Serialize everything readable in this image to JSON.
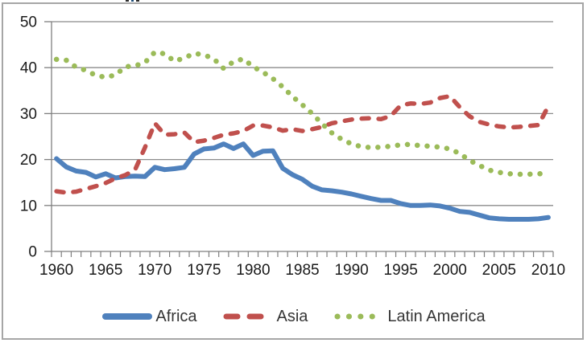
{
  "chart_data": {
    "type": "line",
    "title": "",
    "x_start": 1960,
    "x_end": 2010,
    "x_step": 1,
    "x_tick_labels": [
      "1960",
      "1965",
      "1970",
      "1975",
      "1980",
      "1985",
      "1990",
      "1995",
      "2000",
      "2005",
      "2010"
    ],
    "y_ticks": [
      0,
      10,
      20,
      30,
      40,
      50
    ],
    "ylim": [
      0,
      50
    ],
    "grid": "horizontal",
    "legend_position": "bottom",
    "series": [
      {
        "name": "Africa",
        "slug": "africa",
        "color": "#4f81bd",
        "style": "solid",
        "values": [
          20.2,
          18.4,
          17.5,
          17.2,
          16.2,
          16.9,
          16.0,
          16.3,
          16.4,
          16.3,
          18.3,
          17.8,
          18.0,
          18.3,
          21.2,
          22.3,
          22.5,
          23.4,
          22.4,
          23.4,
          20.9,
          21.8,
          21.9,
          18.1,
          16.7,
          15.7,
          14.2,
          13.4,
          13.2,
          12.9,
          12.5,
          12.0,
          11.5,
          11.1,
          11.1,
          10.4,
          10.0,
          10.0,
          10.1,
          9.9,
          9.4,
          8.7,
          8.5,
          7.9,
          7.3,
          7.1,
          7.0,
          7.0,
          7.0,
          7.1,
          7.4
        ]
      },
      {
        "name": "Asia",
        "slug": "asia",
        "color": "#c0504d",
        "style": "dashed",
        "values": [
          13.1,
          12.8,
          13.0,
          13.6,
          14.2,
          14.9,
          15.9,
          16.6,
          17.8,
          22.6,
          27.9,
          25.4,
          25.5,
          25.9,
          23.8,
          24.1,
          24.7,
          25.4,
          25.7,
          26.2,
          27.4,
          27.4,
          27.0,
          26.3,
          26.6,
          26.2,
          26.6,
          27.1,
          27.9,
          28.3,
          28.7,
          28.9,
          29.0,
          28.8,
          29.5,
          31.8,
          32.2,
          32.1,
          32.4,
          33.4,
          33.8,
          31.4,
          29.4,
          28.2,
          27.6,
          27.2,
          27.0,
          27.1,
          27.3,
          27.5,
          31.6
        ]
      },
      {
        "name": "Latin America",
        "slug": "latin-america",
        "color": "#9bbb59",
        "style": "dotted",
        "values": [
          41.8,
          41.6,
          40.1,
          39.4,
          38.3,
          37.9,
          38.4,
          40.2,
          40.4,
          41.1,
          43.4,
          43.0,
          41.4,
          42.1,
          43.1,
          42.8,
          41.9,
          39.8,
          41.3,
          41.9,
          40.2,
          39.0,
          37.6,
          35.8,
          33.7,
          31.9,
          30.0,
          27.8,
          25.8,
          24.4,
          23.4,
          22.8,
          22.6,
          22.7,
          22.9,
          23.2,
          23.3,
          23.0,
          22.9,
          22.7,
          22.3,
          21.3,
          19.8,
          18.7,
          17.7,
          17.2,
          16.9,
          16.8,
          16.8,
          16.9,
          16.9
        ]
      }
    ],
    "colors": {
      "gridline": "#8b8b8b",
      "axis": "#7f7f7f",
      "tick_text": "#1a1a1a",
      "legend_text": "#363636",
      "frame_border": "#a6a6a6"
    }
  }
}
